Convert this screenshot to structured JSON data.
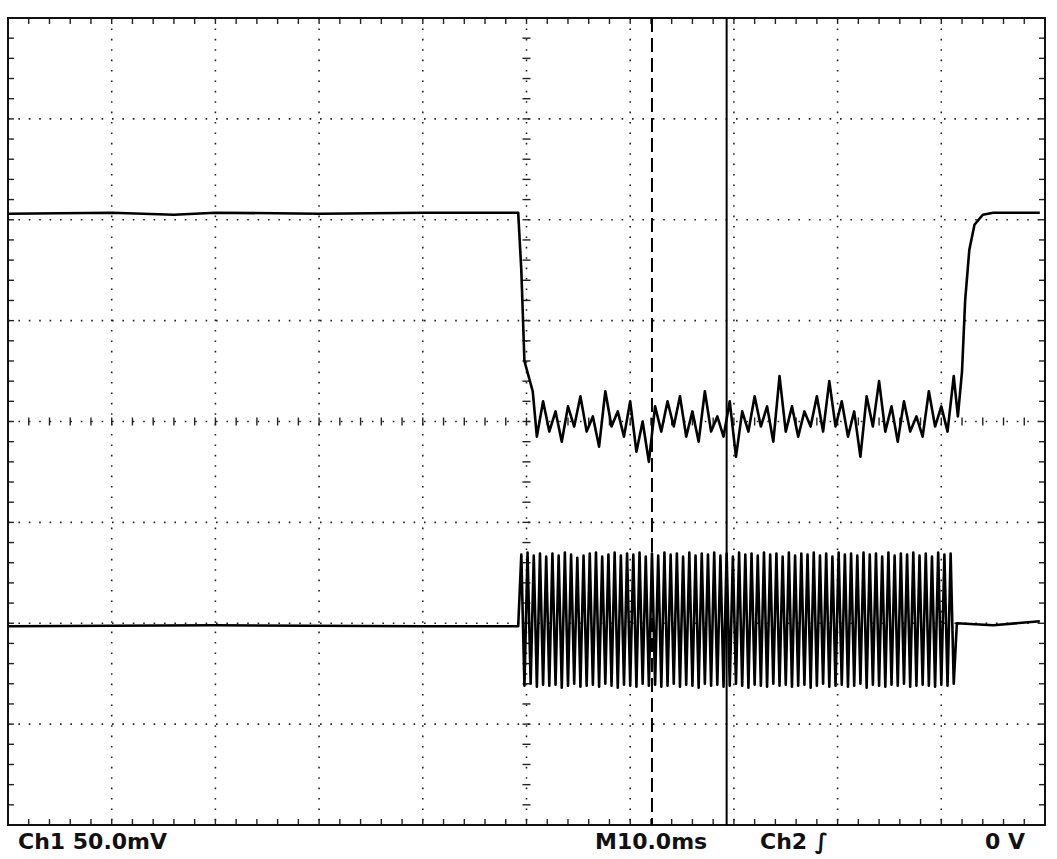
{
  "chart_data": {
    "type": "line",
    "xlim": [
      0,
      100
    ],
    "ylim": [
      -4,
      4
    ],
    "xticks": [
      0,
      10,
      20,
      30,
      40,
      50,
      60,
      70,
      80,
      90,
      100
    ],
    "yticks": [
      -4,
      -3,
      -2,
      -1,
      0,
      1,
      2,
      3,
      4
    ],
    "grid": true,
    "tick_labels": false,
    "annotations": [
      {
        "text": "Ch1 50.0mV"
      },
      {
        "text": "M10.0ms"
      },
      {
        "text": "Ch2 ∫"
      },
      {
        "text": "0 V"
      }
    ],
    "cursors": [
      {
        "x": 62.1,
        "line_style": "dashed"
      },
      {
        "x": 69.3,
        "line_style": "solid"
      }
    ],
    "series": [
      {
        "color": "#000000",
        "line_style": "solid",
        "x": [
          0,
          10,
          16,
          20,
          30,
          40,
          49.2,
          49.5,
          49.8,
          50.2,
          50.6,
          51.0,
          51.6,
          52.2,
          52.8,
          53.4,
          54.0,
          54.6,
          55.2,
          55.8,
          56.4,
          57.0,
          57.6,
          58.2,
          58.8,
          59.4,
          60.0,
          60.6,
          61.2,
          61.8,
          62.4,
          63.0,
          63.6,
          64.2,
          64.8,
          65.4,
          66.0,
          66.6,
          67.2,
          67.8,
          68.4,
          69.0,
          69.6,
          70.2,
          70.8,
          71.4,
          72.0,
          72.6,
          73.2,
          73.8,
          74.4,
          75.0,
          75.6,
          76.2,
          76.8,
          77.4,
          78.0,
          78.6,
          79.2,
          79.8,
          80.4,
          81.0,
          81.6,
          82.2,
          82.8,
          83.4,
          84.0,
          84.6,
          85.2,
          85.8,
          86.4,
          87.0,
          87.6,
          88.2,
          88.8,
          89.4,
          90.0,
          90.6,
          91.2,
          91.6,
          92.0,
          92.3,
          92.7,
          93.2,
          94.0,
          95.0,
          99.5
        ],
        "values": [
          2.06,
          2.07,
          2.05,
          2.07,
          2.06,
          2.07,
          2.07,
          1.5,
          0.6,
          0.45,
          0.3,
          -0.15,
          0.2,
          -0.1,
          0.1,
          -0.2,
          0.15,
          -0.05,
          0.25,
          -0.1,
          0.05,
          -0.25,
          0.3,
          -0.05,
          0.1,
          -0.15,
          0.2,
          -0.3,
          0.0,
          -0.4,
          0.15,
          -0.1,
          0.2,
          -0.05,
          0.25,
          -0.15,
          0.1,
          -0.2,
          0.3,
          -0.1,
          0.05,
          -0.15,
          0.2,
          -0.35,
          0.1,
          -0.1,
          0.25,
          -0.05,
          0.15,
          -0.2,
          0.45,
          -0.1,
          0.15,
          -0.15,
          0.1,
          -0.05,
          0.25,
          -0.1,
          0.4,
          -0.05,
          0.2,
          -0.15,
          0.1,
          -0.35,
          0.25,
          -0.05,
          0.4,
          -0.1,
          0.15,
          -0.2,
          0.2,
          -0.1,
          0.05,
          -0.15,
          0.3,
          -0.05,
          0.15,
          -0.1,
          0.45,
          0.05,
          0.5,
          1.2,
          1.7,
          1.95,
          2.05,
          2.07,
          2.07
        ]
      },
      {
        "color": "#000000",
        "line_style": "solid",
        "x": [
          0,
          20,
          40,
          49.2,
          49.5,
          49.8,
          50.1,
          50.4,
          50.7,
          51.0,
          51.3,
          51.6,
          51.9,
          52.2,
          52.5,
          52.8,
          53.1,
          53.4,
          53.7,
          54.0,
          54.3,
          54.6,
          54.9,
          55.2,
          55.5,
          55.8,
          56.1,
          56.4,
          56.7,
          57.0,
          57.3,
          57.6,
          57.9,
          58.2,
          58.5,
          58.8,
          59.1,
          59.4,
          59.7,
          60.0,
          60.3,
          60.6,
          60.9,
          61.2,
          61.5,
          61.8,
          62.1,
          62.4,
          62.7,
          63.0,
          63.3,
          63.6,
          63.9,
          64.2,
          64.5,
          64.8,
          65.1,
          65.4,
          65.7,
          66.0,
          66.3,
          66.6,
          66.9,
          67.2,
          67.5,
          67.8,
          68.1,
          68.4,
          68.7,
          69.0,
          69.3,
          69.6,
          69.9,
          70.2,
          70.5,
          70.8,
          71.1,
          71.4,
          71.7,
          72.0,
          72.3,
          72.6,
          72.9,
          73.2,
          73.5,
          73.8,
          74.1,
          74.4,
          74.7,
          75.0,
          75.3,
          75.6,
          75.9,
          76.2,
          76.5,
          76.8,
          77.1,
          77.4,
          77.7,
          78.0,
          78.3,
          78.6,
          78.9,
          79.2,
          79.5,
          79.8,
          80.1,
          80.4,
          80.7,
          81.0,
          81.3,
          81.6,
          81.9,
          82.2,
          82.5,
          82.8,
          83.1,
          83.4,
          83.7,
          84.0,
          84.3,
          84.6,
          84.9,
          85.2,
          85.5,
          85.8,
          86.1,
          86.4,
          86.7,
          87.0,
          87.3,
          87.6,
          87.9,
          88.2,
          88.5,
          88.8,
          89.1,
          89.4,
          89.7,
          90.0,
          90.3,
          90.6,
          90.9,
          91.2,
          91.5,
          95,
          99.5
        ],
        "values": [
          -2.03,
          -2.02,
          -2.03,
          -2.03,
          -1.32,
          -2.62,
          -1.3,
          -2.6,
          -1.33,
          -2.63,
          -1.31,
          -2.61,
          -1.34,
          -2.62,
          -1.31,
          -2.61,
          -1.33,
          -2.64,
          -1.3,
          -2.62,
          -1.32,
          -2.6,
          -1.35,
          -2.63,
          -1.33,
          -2.62,
          -1.31,
          -2.61,
          -1.3,
          -2.63,
          -1.34,
          -2.6,
          -1.32,
          -2.62,
          -1.3,
          -2.64,
          -1.33,
          -2.61,
          -1.31,
          -2.62,
          -1.32,
          -2.63,
          -1.3,
          -2.6,
          -1.34,
          -2.62,
          -1.31,
          -2.61,
          -1.33,
          -2.63,
          -1.3,
          -2.62,
          -1.32,
          -2.6,
          -1.31,
          -2.63,
          -1.34,
          -2.61,
          -1.3,
          -2.62,
          -1.33,
          -2.64,
          -1.31,
          -2.6,
          -1.32,
          -2.62,
          -1.3,
          -2.61,
          -1.33,
          -2.63,
          -1.31,
          -2.62,
          -1.34,
          -2.6,
          -1.3,
          -2.62,
          -1.32,
          -2.64,
          -1.31,
          -2.61,
          -1.33,
          -2.62,
          -1.3,
          -2.63,
          -1.32,
          -2.6,
          -1.31,
          -2.62,
          -1.34,
          -2.61,
          -1.3,
          -2.63,
          -1.33,
          -2.62,
          -1.31,
          -2.61,
          -1.32,
          -2.64,
          -1.3,
          -2.62,
          -1.33,
          -2.6,
          -1.31,
          -2.63,
          -1.34,
          -2.62,
          -1.3,
          -2.61,
          -1.32,
          -2.63,
          -1.31,
          -2.62,
          -1.33,
          -2.6,
          -1.3,
          -2.64,
          -1.32,
          -2.61,
          -1.31,
          -2.62,
          -1.34,
          -2.63,
          -1.3,
          -2.61,
          -1.33,
          -2.62,
          -1.31,
          -2.6,
          -1.32,
          -2.63,
          -1.3,
          -2.62,
          -1.33,
          -2.61,
          -1.31,
          -2.62,
          -1.34,
          -2.63,
          -1.3,
          -2.61,
          -1.32,
          -2.62,
          -1.31,
          -2.6,
          -2.0,
          -2.02,
          -1.98
        ]
      }
    ]
  }
}
